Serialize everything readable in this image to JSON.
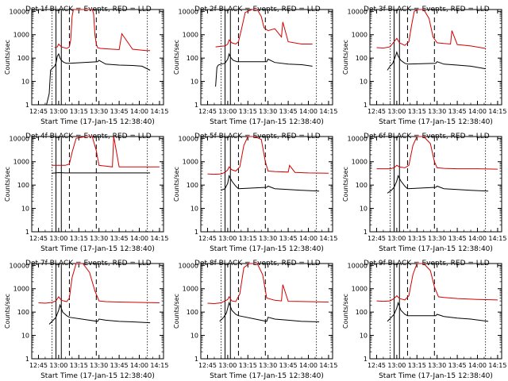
{
  "figure": {
    "ylabel": "Counts/sec",
    "xlabel": "Start Time (17-Jan-15 12:38:40)"
  },
  "colors": {
    "events": "#000000",
    "lld": "#d40000",
    "axes": "#000000"
  },
  "chart_data": [
    {
      "type": "line",
      "title": "Det 1f BLACK = Events, RED = LLD",
      "xlabel": "Start Time (17-Jan-15 12:38:40)",
      "ylabel": "Counts/sec",
      "x_ticks": [
        "12:45",
        "13:00",
        "13:15",
        "13:30",
        "13:45",
        "14:00",
        "14:15"
      ],
      "y_ticks": [
        "1",
        "10",
        "100",
        "1000",
        "10000"
      ],
      "xlim": [
        "12:40",
        "14:18"
      ],
      "ylim": [
        1,
        12000
      ],
      "y_scale": "log",
      "series": [
        {
          "name": "Events",
          "x": [
            "12:51",
            "12:53",
            "12:54",
            "12:56",
            "12:57",
            "12:58",
            "12:59",
            "13:00",
            "13:01",
            "13:02",
            "13:04",
            "13:06",
            "13:08",
            "13:29",
            "13:30",
            "13:35",
            "13:45",
            "13:55",
            "14:02",
            "14:08"
          ],
          "y": [
            1,
            3,
            30,
            40,
            45,
            60,
            120,
            150,
            100,
            80,
            65,
            60,
            60,
            70,
            80,
            55,
            50,
            48,
            45,
            30
          ]
        },
        {
          "name": "LLD",
          "x": [
            "12:57",
            "12:59",
            "13:00",
            "13:02",
            "13:06",
            "13:08",
            "13:09",
            "13:10",
            "13:11",
            "13:25",
            "13:26",
            "13:27",
            "13:28",
            "13:29",
            "13:31",
            "13:35",
            "13:45",
            "13:47",
            "13:55",
            "14:05",
            "14:08"
          ],
          "y": [
            280,
            300,
            400,
            300,
            260,
            300,
            600,
            6000,
            12000,
            12000,
            8000,
            1000,
            400,
            280,
            260,
            250,
            230,
            1100,
            240,
            210,
            210
          ]
        }
      ]
    },
    {
      "type": "line",
      "title": "Det 2f BLACK = Events, RED = LLD",
      "xlabel": "Start Time (17-Jan-15 12:38:40)",
      "ylabel": "Counts/sec",
      "x_ticks": [
        "12:45",
        "13:00",
        "13:15",
        "13:30",
        "13:45",
        "14:00",
        "14:15"
      ],
      "y_ticks": [
        "1",
        "10",
        "100",
        "1000",
        "10000"
      ],
      "xlim": [
        "12:40",
        "14:18"
      ],
      "ylim": [
        1,
        12000
      ],
      "y_scale": "log",
      "series": [
        {
          "name": "Events",
          "x": [
            "12:51",
            "12:52",
            "12:53",
            "12:55",
            "12:58",
            "13:00",
            "13:01",
            "13:02",
            "13:04",
            "13:07",
            "13:29",
            "13:30",
            "13:35",
            "13:45",
            "13:55",
            "14:03"
          ],
          "y": [
            6,
            40,
            50,
            55,
            60,
            90,
            150,
            110,
            80,
            70,
            70,
            90,
            65,
            55,
            52,
            45
          ]
        },
        {
          "name": "LLD",
          "x": [
            "12:51",
            "12:55",
            "12:58",
            "13:00",
            "13:01",
            "13:03",
            "13:06",
            "13:08",
            "13:10",
            "13:13",
            "13:18",
            "13:22",
            "13:25",
            "13:27",
            "13:30",
            "13:35",
            "13:40",
            "13:41",
            "13:45",
            "13:55",
            "14:03"
          ],
          "y": [
            300,
            320,
            330,
            400,
            600,
            450,
            400,
            500,
            1500,
            9000,
            12000,
            12000,
            6000,
            2000,
            1500,
            1800,
            800,
            3500,
            500,
            400,
            400
          ]
        }
      ]
    },
    {
      "type": "line",
      "title": "Det 3f BLACK = Events, RED = LLD",
      "xlabel": "Start Time (17-Jan-15 12:38:40)",
      "ylabel": "Counts/sec",
      "x_ticks": [
        "12:45",
        "13:00",
        "13:15",
        "13:30",
        "13:45",
        "14:00",
        "14:15"
      ],
      "y_ticks": [
        "1",
        "10",
        "100",
        "1000",
        "10000"
      ],
      "xlim": [
        "12:40",
        "14:18"
      ],
      "ylim": [
        1,
        12000
      ],
      "y_scale": "log",
      "series": [
        {
          "name": "Events",
          "x": [
            "12:53",
            "12:55",
            "12:57",
            "12:59",
            "13:00",
            "13:01",
            "13:03",
            "13:06",
            "13:08",
            "13:29",
            "13:30",
            "13:35",
            "13:45",
            "13:55",
            "14:06"
          ],
          "y": [
            30,
            45,
            60,
            120,
            180,
            120,
            80,
            60,
            55,
            60,
            70,
            55,
            50,
            45,
            35
          ]
        },
        {
          "name": "LLD",
          "x": [
            "12:45",
            "12:50",
            "12:55",
            "12:58",
            "13:00",
            "13:02",
            "13:06",
            "13:09",
            "13:11",
            "13:13",
            "13:16",
            "13:20",
            "13:24",
            "13:27",
            "13:30",
            "13:35",
            "13:40",
            "13:41",
            "13:45",
            "13:55",
            "14:06"
          ],
          "y": [
            280,
            270,
            300,
            500,
            700,
            450,
            350,
            500,
            2500,
            10000,
            12000,
            12000,
            5000,
            800,
            450,
            420,
            400,
            1500,
            380,
            330,
            260
          ]
        }
      ]
    },
    {
      "type": "line",
      "title": "Det 4f BLACK = Events, RED = LLD",
      "xlabel": "Start Time (17-Jan-15 12:38:40)",
      "ylabel": "Counts/sec",
      "x_ticks": [
        "12:45",
        "13:00",
        "13:15",
        "13:30",
        "13:45",
        "14:00",
        "14:15"
      ],
      "y_ticks": [
        "1",
        "10",
        "100",
        "1000",
        "10000"
      ],
      "xlim": [
        "12:40",
        "14:18"
      ],
      "ylim": [
        1,
        12000
      ],
      "y_scale": "log",
      "series": [
        {
          "name": "Events",
          "x": [
            "12:55",
            "13:00",
            "13:05",
            "13:08",
            "13:29",
            "13:30",
            "13:45",
            "14:00",
            "14:08"
          ],
          "y": [
            320,
            340,
            330,
            330,
            330,
            330,
            330,
            330,
            330
          ]
        },
        {
          "name": "LLD",
          "x": [
            "12:55",
            "13:00",
            "13:05",
            "13:08",
            "13:10",
            "13:13",
            "13:20",
            "13:25",
            "13:28",
            "13:30",
            "13:35",
            "13:40",
            "13:41",
            "13:45",
            "14:00",
            "14:15"
          ],
          "y": [
            700,
            700,
            700,
            800,
            2500,
            10000,
            12000,
            12000,
            3000,
            700,
            650,
            600,
            12000,
            600,
            600,
            600
          ]
        }
      ]
    },
    {
      "type": "line",
      "title": "Det 5f BLACK = Events, RED = LLD",
      "xlabel": "Start Time (17-Jan-15 12:38:40)",
      "ylabel": "Counts/sec",
      "x_ticks": [
        "12:45",
        "13:00",
        "13:15",
        "13:30",
        "13:45",
        "14:00",
        "14:15"
      ],
      "y_ticks": [
        "1",
        "10",
        "100",
        "1000",
        "10000"
      ],
      "xlim": [
        "12:40",
        "14:18"
      ],
      "ylim": [
        1,
        12000
      ],
      "y_scale": "log",
      "series": [
        {
          "name": "Events",
          "x": [
            "12:55",
            "12:58",
            "13:00",
            "13:01",
            "13:03",
            "13:06",
            "13:08",
            "13:29",
            "13:30",
            "13:35",
            "13:45",
            "13:55",
            "14:08"
          ],
          "y": [
            60,
            70,
            120,
            250,
            150,
            90,
            70,
            80,
            90,
            70,
            65,
            60,
            55
          ]
        },
        {
          "name": "LLD",
          "x": [
            "12:45",
            "12:50",
            "12:55",
            "12:58",
            "13:00",
            "13:01",
            "13:03",
            "13:06",
            "13:09",
            "13:12",
            "13:15",
            "13:20",
            "13:25",
            "13:28",
            "13:30",
            "13:35",
            "13:45",
            "13:46",
            "13:50",
            "14:00",
            "14:15"
          ],
          "y": [
            300,
            290,
            300,
            350,
            450,
            600,
            450,
            400,
            600,
            5000,
            12000,
            12000,
            9000,
            1000,
            400,
            380,
            360,
            700,
            350,
            330,
            320
          ]
        }
      ]
    },
    {
      "type": "line",
      "title": "Det 6f BLACK = Events, RED = LLD",
      "xlabel": "Start Time (17-Jan-15 12:38:40)",
      "ylabel": "Counts/sec",
      "x_ticks": [
        "12:45",
        "13:00",
        "13:15",
        "13:30",
        "13:45",
        "14:00",
        "14:15"
      ],
      "y_ticks": [
        "1",
        "10",
        "100",
        "1000",
        "10000"
      ],
      "xlim": [
        "12:40",
        "14:18"
      ],
      "ylim": [
        1,
        12000
      ],
      "y_scale": "log",
      "series": [
        {
          "name": "Events",
          "x": [
            "12:53",
            "12:56",
            "12:58",
            "13:00",
            "13:01",
            "13:03",
            "13:06",
            "13:08",
            "13:29",
            "13:30",
            "13:35",
            "13:45",
            "13:55",
            "14:08"
          ],
          "y": [
            45,
            60,
            80,
            150,
            250,
            150,
            90,
            70,
            80,
            90,
            70,
            65,
            60,
            55
          ]
        },
        {
          "name": "LLD",
          "x": [
            "12:45",
            "12:50",
            "12:55",
            "12:58",
            "13:00",
            "13:02",
            "13:06",
            "13:09",
            "13:12",
            "13:15",
            "13:20",
            "13:25",
            "13:28",
            "13:30",
            "13:35",
            "13:45",
            "14:00",
            "14:15"
          ],
          "y": [
            500,
            500,
            500,
            550,
            700,
            600,
            550,
            700,
            5000,
            12000,
            12000,
            6000,
            1000,
            550,
            520,
            500,
            500,
            480
          ]
        }
      ]
    },
    {
      "type": "line",
      "title": "Det 7f BLACK = Events, RED = LLD",
      "xlabel": "Start Time (17-Jan-15 12:38:40)",
      "ylabel": "Counts/sec",
      "x_ticks": [
        "12:45",
        "13:00",
        "13:15",
        "13:30",
        "13:45",
        "14:00",
        "14:15"
      ],
      "y_ticks": [
        "1",
        "10",
        "100",
        "1000",
        "10000"
      ],
      "xlim": [
        "12:40",
        "14:18"
      ],
      "ylim": [
        1,
        12000
      ],
      "y_scale": "log",
      "series": [
        {
          "name": "Events",
          "x": [
            "12:53",
            "12:56",
            "12:58",
            "13:00",
            "13:01",
            "13:03",
            "13:06",
            "13:08",
            "13:29",
            "13:30",
            "13:35",
            "13:45",
            "13:55",
            "14:08"
          ],
          "y": [
            30,
            45,
            60,
            120,
            200,
            100,
            70,
            60,
            40,
            50,
            45,
            40,
            38,
            35
          ]
        },
        {
          "name": "LLD",
          "x": [
            "12:45",
            "12:50",
            "12:55",
            "12:58",
            "13:00",
            "13:02",
            "13:06",
            "13:08",
            "13:10",
            "13:13",
            "13:18",
            "13:23",
            "13:27",
            "13:30",
            "13:35",
            "13:45",
            "14:00",
            "14:15"
          ],
          "y": [
            250,
            240,
            260,
            300,
            450,
            320,
            280,
            400,
            3000,
            12000,
            12000,
            5000,
            800,
            300,
            280,
            270,
            260,
            250
          ]
        }
      ]
    },
    {
      "type": "line",
      "title": "Det 8f BLACK = Events, RED = LLD",
      "xlabel": "Start Time (17-Jan-15 12:38:40)",
      "ylabel": "Counts/sec",
      "x_ticks": [
        "12:45",
        "13:00",
        "13:15",
        "13:30",
        "13:45",
        "14:00",
        "14:15"
      ],
      "y_ticks": [
        "1",
        "10",
        "100",
        "1000",
        "10000"
      ],
      "xlim": [
        "12:40",
        "14:18"
      ],
      "ylim": [
        1,
        12000
      ],
      "y_scale": "log",
      "series": [
        {
          "name": "Events",
          "x": [
            "12:54",
            "12:57",
            "12:59",
            "13:00",
            "13:01",
            "13:03",
            "13:06",
            "13:08",
            "13:29",
            "13:30",
            "13:35",
            "13:45",
            "13:55",
            "14:08"
          ],
          "y": [
            40,
            60,
            90,
            150,
            250,
            120,
            80,
            70,
            40,
            60,
            50,
            45,
            40,
            38
          ]
        },
        {
          "name": "LLD",
          "x": [
            "12:45",
            "12:50",
            "12:55",
            "12:58",
            "13:00",
            "13:01",
            "13:03",
            "13:06",
            "13:09",
            "13:12",
            "13:16",
            "13:22",
            "13:26",
            "13:29",
            "13:35",
            "13:40",
            "13:41",
            "13:45",
            "14:00",
            "14:15"
          ],
          "y": [
            240,
            230,
            250,
            300,
            350,
            450,
            300,
            280,
            600,
            8000,
            12000,
            12000,
            4000,
            400,
            320,
            300,
            1500,
            290,
            280,
            270
          ]
        }
      ]
    },
    {
      "type": "line",
      "title": "Det 9f BLACK = Events, RED = LLD",
      "xlabel": "Start Time (17-Jan-15 12:38:40)",
      "ylabel": "Counts/sec",
      "x_ticks": [
        "12:45",
        "13:00",
        "13:15",
        "13:30",
        "13:45",
        "14:00",
        "14:15"
      ],
      "y_ticks": [
        "1",
        "10",
        "100",
        "1000",
        "10000"
      ],
      "xlim": [
        "12:40",
        "14:18"
      ],
      "ylim": [
        1,
        12000
      ],
      "y_scale": "log",
      "series": [
        {
          "name": "Events",
          "x": [
            "12:53",
            "12:56",
            "12:58",
            "13:00",
            "13:01",
            "13:03",
            "13:06",
            "13:08",
            "13:29",
            "13:30",
            "13:35",
            "13:45",
            "13:55",
            "14:08"
          ],
          "y": [
            40,
            60,
            80,
            150,
            250,
            120,
            80,
            70,
            70,
            80,
            65,
            55,
            50,
            40
          ]
        },
        {
          "name": "LLD",
          "x": [
            "12:45",
            "12:50",
            "12:55",
            "12:58",
            "13:00",
            "13:02",
            "13:06",
            "13:09",
            "13:12",
            "13:15",
            "13:20",
            "13:25",
            "13:28",
            "13:31",
            "13:35",
            "13:45",
            "14:00",
            "14:15"
          ],
          "y": [
            300,
            290,
            300,
            380,
            500,
            380,
            330,
            500,
            4000,
            12000,
            12000,
            6000,
            1200,
            450,
            420,
            380,
            350,
            330
          ]
        }
      ]
    }
  ]
}
